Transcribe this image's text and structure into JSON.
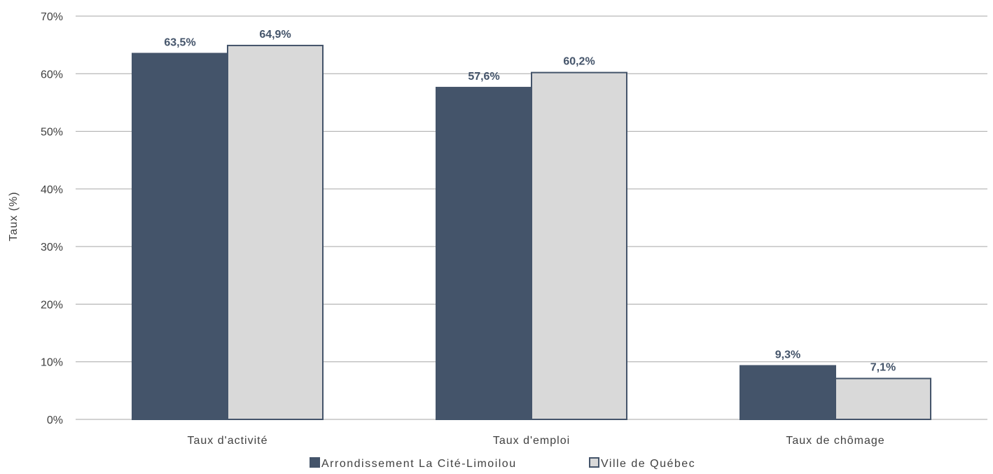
{
  "chart_data": {
    "type": "bar",
    "categories": [
      "Taux d'activité",
      "Taux d'emploi",
      "Taux de chômage"
    ],
    "series": [
      {
        "name": "Arrondissement La Cité-Limoilou",
        "values": [
          63.5,
          57.6,
          9.3
        ],
        "labels": [
          "63,5%",
          "57,6%",
          "9,3%"
        ],
        "color": "#44546a"
      },
      {
        "name": "Ville de Québec",
        "values": [
          64.9,
          60.2,
          7.1
        ],
        "labels": [
          "64,9%",
          "60,2%",
          "7,1%"
        ],
        "color": "#d9d9d9"
      }
    ],
    "ylabel": "Taux (%)",
    "ylim": [
      0,
      70
    ],
    "yticks": [
      0,
      10,
      20,
      30,
      40,
      50,
      60,
      70
    ],
    "ytick_labels": [
      "0%",
      "10%",
      "20%",
      "30%",
      "40%",
      "50%",
      "60%",
      "70%"
    ],
    "grid": true,
    "legend_position": "bottom",
    "bar_outline_color": "#44546a",
    "gridline_color": "#a6a6a6"
  }
}
